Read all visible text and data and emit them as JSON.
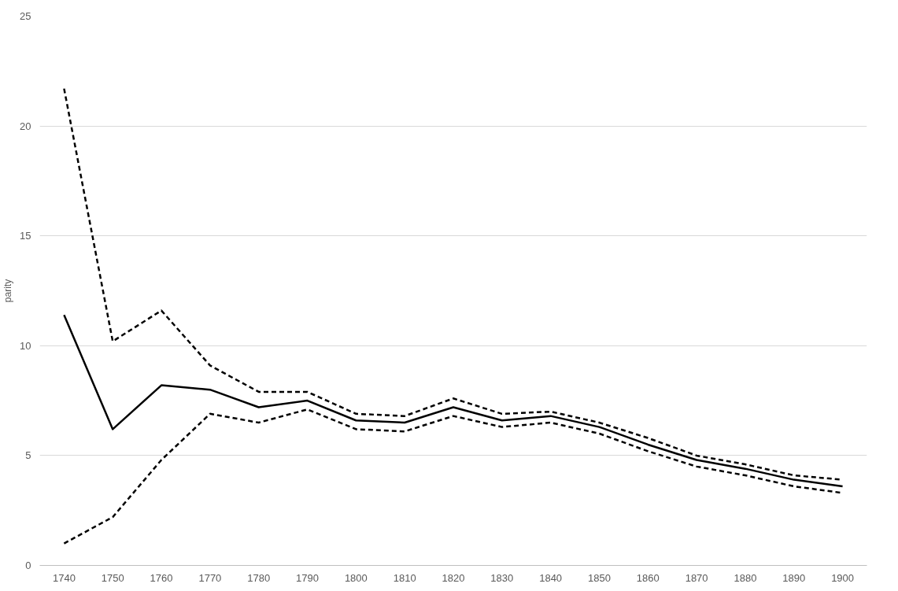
{
  "chart_data": {
    "type": "line",
    "ylabel": "parity",
    "categories": [
      "1740",
      "1750",
      "1760",
      "1770",
      "1780",
      "1790",
      "1800",
      "1810",
      "1820",
      "1830",
      "1840",
      "1850",
      "1860",
      "1870",
      "1880",
      "1890",
      "1900"
    ],
    "series": [
      {
        "color": "#000000",
        "line_style": "dashed",
        "values": [
          21.7,
          10.2,
          11.6,
          9.1,
          7.9,
          7.9,
          6.9,
          6.8,
          7.6,
          6.9,
          7.0,
          6.5,
          5.8,
          5.0,
          4.6,
          4.1,
          3.9
        ]
      },
      {
        "color": "#000000",
        "line_style": "solid",
        "values": [
          11.4,
          6.2,
          8.2,
          8.0,
          7.2,
          7.5,
          6.6,
          6.5,
          7.2,
          6.6,
          6.8,
          6.3,
          5.5,
          4.8,
          4.4,
          3.9,
          3.6
        ]
      },
      {
        "color": "#000000",
        "line_style": "dashed",
        "values": [
          1.0,
          2.2,
          4.8,
          6.9,
          6.5,
          7.1,
          6.2,
          6.1,
          6.8,
          6.3,
          6.5,
          6.0,
          5.2,
          4.5,
          4.1,
          3.6,
          3.3
        ]
      }
    ],
    "ylim": [
      0,
      25
    ],
    "yticks": [
      0,
      5,
      10,
      15,
      20,
      25
    ],
    "grid": "y"
  }
}
